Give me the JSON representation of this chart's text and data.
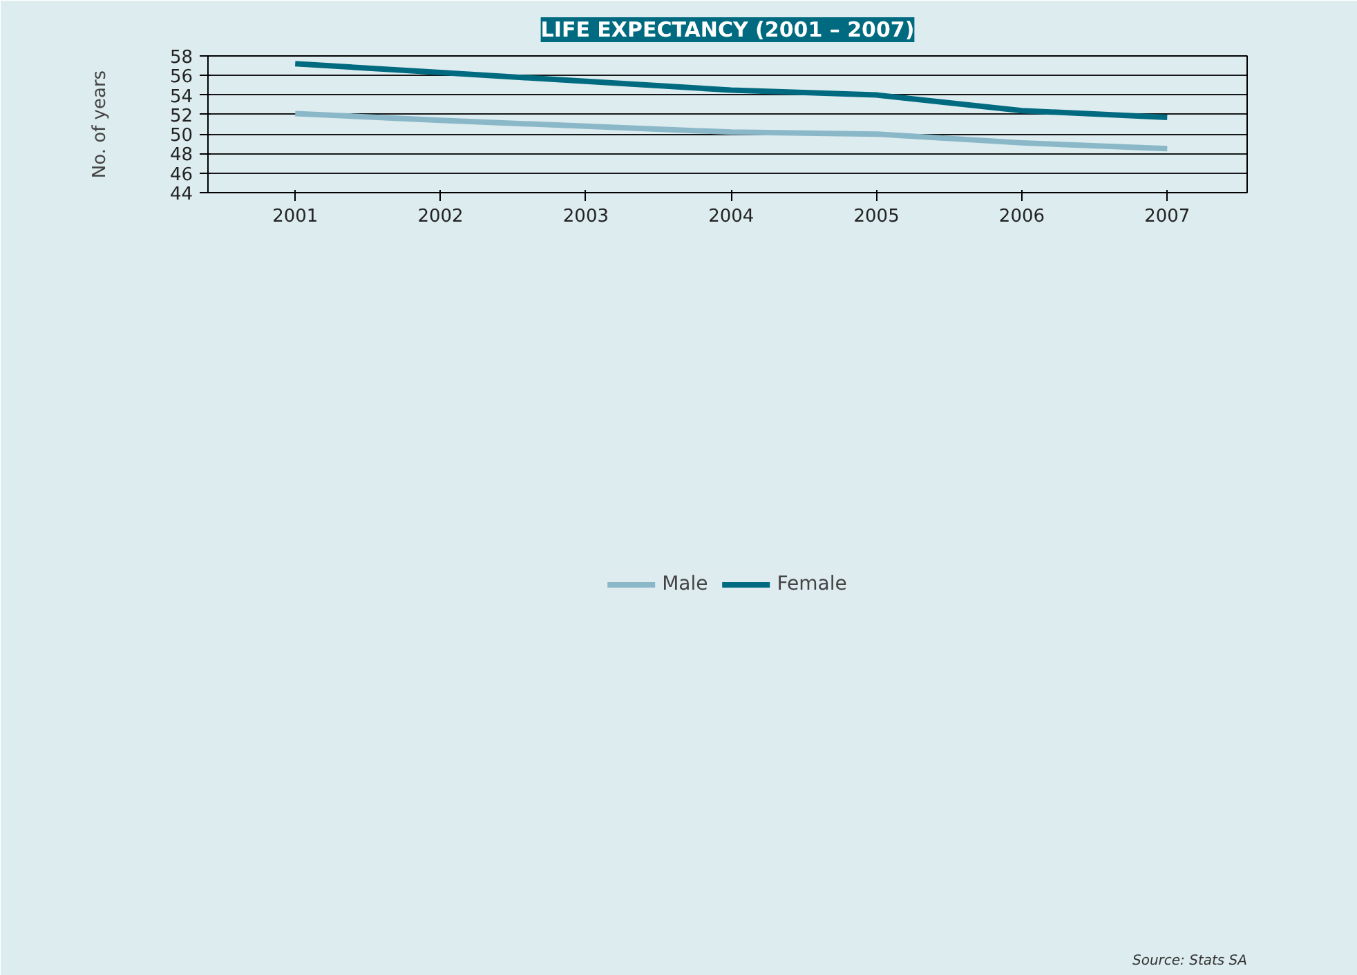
{
  "chart_data": {
    "type": "line",
    "title": "LIFE EXPECTANCY (2001 – 2007)",
    "ylabel": "No. of years",
    "categories": [
      "2001",
      "2002",
      "2003",
      "2004",
      "2005",
      "2006",
      "2007"
    ],
    "series": [
      {
        "name": "Male",
        "color": "#8bb8c8",
        "values": [
          52.1,
          51.4,
          50.8,
          50.2,
          50.0,
          49.1,
          48.5
        ]
      },
      {
        "name": "Female",
        "color": "#006b80",
        "values": [
          57.2,
          56.3,
          55.4,
          54.5,
          54.0,
          52.4,
          51.7
        ]
      }
    ],
    "ylim": [
      44,
      58
    ],
    "yticks": [
      44,
      46,
      48,
      50,
      52,
      54,
      56,
      58
    ],
    "grid": "y",
    "legend": "bottom",
    "marker": "none",
    "line_style": "solid",
    "annotations": [
      "Source: Stats SA"
    ]
  }
}
